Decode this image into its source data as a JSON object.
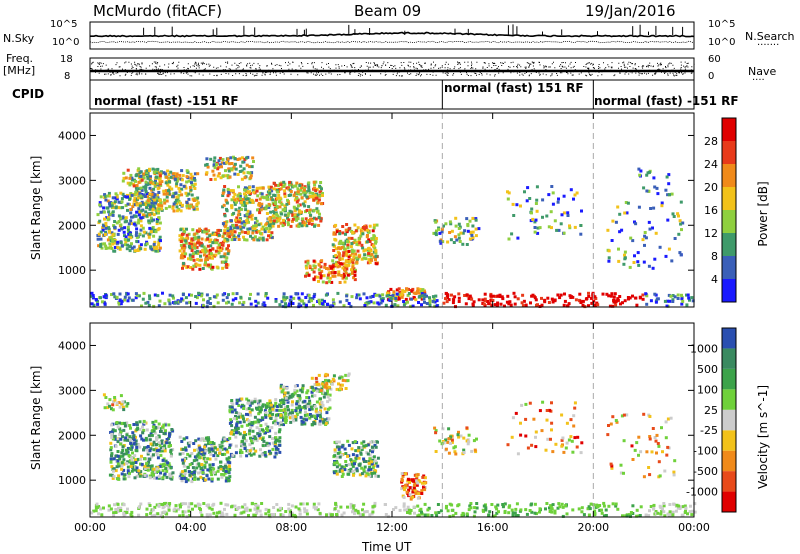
{
  "header": {
    "station": "McMurdo (fitACF)",
    "beam": "Beam 09",
    "date": "19/Jan/2016"
  },
  "noise_panel": {
    "left_label": "N.Sky",
    "right_label": "N.Search",
    "left_ticks": [
      "10^5",
      "10^0"
    ],
    "right_ticks": [
      "10^5",
      "10^0"
    ]
  },
  "freq_panel": {
    "left_label": "Freq.",
    "left_unit": "[MHz]",
    "left_ticks": [
      "18",
      "8"
    ],
    "right_label": "Nave",
    "right_ticks": [
      "60",
      "0"
    ]
  },
  "cpid": {
    "label": "CPID",
    "segments": [
      {
        "text": "normal (fast) -151 RF",
        "start_hour": 0
      },
      {
        "text": "normal (fast) 151 RF",
        "start_hour": 14
      },
      {
        "text": "normal (fast) -151 RF",
        "start_hour": 20
      }
    ]
  },
  "chart_data": [
    {
      "type": "heatmap",
      "title": "",
      "xlabel": "Time UT",
      "ylabel": "Slant Range [km]",
      "xlim_hours": [
        0,
        24
      ],
      "ylim": [
        180,
        4500
      ],
      "x_ticks": [
        "00:00",
        "04:00",
        "08:00",
        "12:00",
        "16:00",
        "20:00",
        "00:00"
      ],
      "y_ticks": [
        1000,
        2000,
        3000,
        4000
      ],
      "colorbar_label": "Power [dB]",
      "colorbar_ticks": [
        "4",
        "8",
        "12",
        "16",
        "20",
        "24",
        "28"
      ],
      "colorbar_colors": [
        "#1a1aff",
        "#3a5fb8",
        "#3f9a6a",
        "#8fcf3f",
        "#f2c21a",
        "#f08a1a",
        "#e83a1a",
        "#e00000"
      ]
    },
    {
      "type": "heatmap",
      "title": "",
      "xlabel": "Time UT",
      "ylabel": "Slant Range [km]",
      "xlim_hours": [
        0,
        24
      ],
      "ylim": [
        180,
        4500
      ],
      "x_ticks": [
        "00:00",
        "04:00",
        "08:00",
        "12:00",
        "16:00",
        "20:00",
        "00:00"
      ],
      "y_ticks": [
        1000,
        2000,
        3000,
        4000
      ],
      "colorbar_label": "Velocity [m s^-1]",
      "colorbar_ticks": [
        "1000",
        "500",
        "100",
        "25",
        "-25",
        "-100",
        "-500",
        "-1000"
      ],
      "colorbar_colors": [
        "#2a4fb0",
        "#3a8a60",
        "#3ca34a",
        "#6fd13a",
        "#cccccc",
        "#f2c21a",
        "#f08a1a",
        "#e84a1a",
        "#e00000"
      ]
    }
  ]
}
